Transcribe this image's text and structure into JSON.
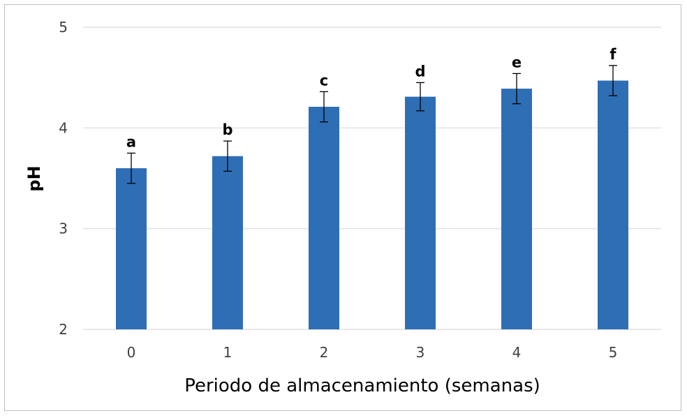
{
  "chart_data": {
    "type": "bar",
    "title": "",
    "xlabel": "Periodo de almacenamiento (semanas)",
    "ylabel": "pH",
    "categories": [
      "0",
      "1",
      "2",
      "3",
      "4",
      "5"
    ],
    "series": [
      {
        "values": [
          3.6,
          3.72,
          4.21,
          4.31,
          4.39,
          4.47
        ],
        "error": [
          0.15,
          0.15,
          0.15,
          0.14,
          0.15,
          0.15
        ],
        "labels": [
          "a",
          "b",
          "c",
          "d",
          "e",
          "f"
        ]
      }
    ],
    "ylim": [
      2,
      5
    ],
    "yticks": [
      "2",
      "3",
      "4",
      "5"
    ],
    "grid": true,
    "legend": "none",
    "colors": {
      "bar": "#2e6eb5",
      "grid": "#d9d9d9",
      "error": "#000000"
    }
  }
}
